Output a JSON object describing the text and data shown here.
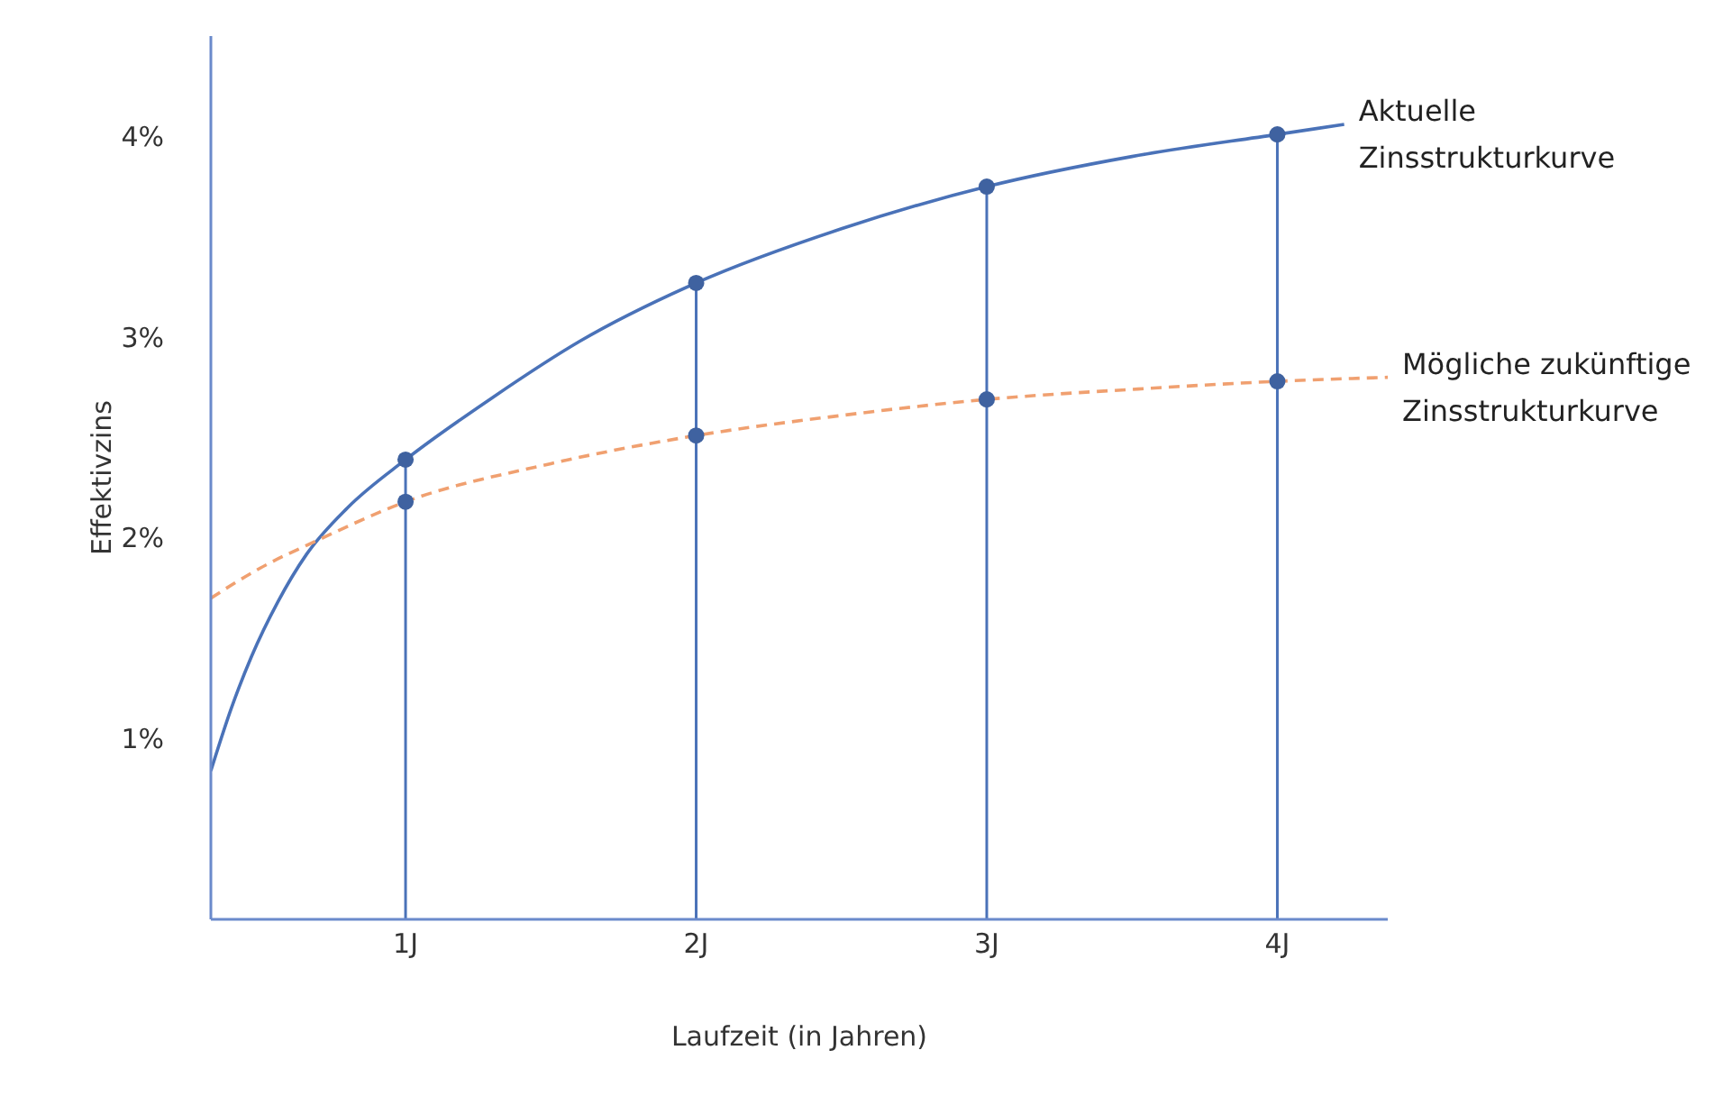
{
  "chart_data": {
    "type": "line",
    "xlabel": "Laufzeit (in Jahren)",
    "ylabel": "Effektivzins",
    "legend": false,
    "grid": false,
    "xlim": [
      0.33,
      4.38
    ],
    "xticks": [
      {
        "value": 1,
        "label": "1J"
      },
      {
        "value": 2,
        "label": "2J"
      },
      {
        "value": 3,
        "label": "3J"
      },
      {
        "value": 4,
        "label": "4J"
      }
    ],
    "ylim": [
      0.1,
      4.5
    ],
    "yticks": [
      {
        "value": 1,
        "label": "1%"
      },
      {
        "value": 2,
        "label": "2%"
      },
      {
        "value": 3,
        "label": "3%"
      },
      {
        "value": 4,
        "label": "4%"
      }
    ],
    "series": [
      {
        "name": "Aktuelle Zinsstrukturkurve",
        "color": "#4a72b8",
        "line_style": "solid",
        "marker": "none",
        "x": [
          0.33,
          0.4,
          0.47,
          0.56,
          0.66,
          0.8,
          1,
          1.3,
          1.6,
          2,
          2.5,
          3,
          3.5,
          4,
          4.23
        ],
        "values": [
          0.84,
          1.15,
          1.41,
          1.68,
          1.92,
          2.15,
          2.39,
          2.7,
          2.98,
          3.27,
          3.54,
          3.75,
          3.9,
          4.01,
          4.06
        ]
      },
      {
        "name": "Mögliche zukünftige Zinsstrukturkurve",
        "color": "#f0a070",
        "line_style": "dashed",
        "marker": "none",
        "x": [
          0.33,
          0.5,
          0.7,
          1,
          1.5,
          2,
          2.5,
          3,
          3.5,
          4,
          4.38
        ],
        "values": [
          1.7,
          1.85,
          1.99,
          2.18,
          2.37,
          2.51,
          2.61,
          2.69,
          2.74,
          2.78,
          2.8
        ]
      },
      {
        "type": "scatter",
        "color": "#3f62a0",
        "marker": "circle",
        "x": [
          1,
          2,
          3,
          4
        ],
        "values": [
          2.39,
          3.27,
          3.75,
          4.01
        ]
      },
      {
        "type": "scatter",
        "color": "#3f62a0",
        "marker": "circle",
        "x": [
          1,
          2,
          3,
          4
        ],
        "values": [
          2.18,
          2.51,
          2.69,
          2.78
        ]
      }
    ],
    "ref_lines": [
      {
        "axis": "x",
        "value": 1,
        "color": "#4a72b8"
      },
      {
        "axis": "x",
        "value": 2,
        "color": "#4a72b8"
      },
      {
        "axis": "x",
        "value": 3,
        "color": "#4a72b8"
      },
      {
        "axis": "x",
        "value": 4,
        "color": "#4a72b8"
      }
    ]
  }
}
